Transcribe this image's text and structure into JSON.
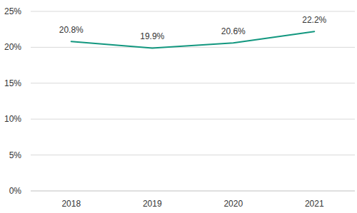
{
  "chart_data": {
    "type": "line",
    "categories": [
      "2018",
      "2019",
      "2020",
      "2021"
    ],
    "values": [
      20.8,
      19.9,
      20.6,
      22.2
    ],
    "value_labels": [
      "20.8%",
      "19.9%",
      "20.6%",
      "22.2%"
    ],
    "color": "#12977f",
    "ylim": [
      0,
      25
    ],
    "yticks": [
      {
        "value": 0,
        "label": "0%"
      },
      {
        "value": 5,
        "label": "5%"
      },
      {
        "value": 10,
        "label": "10%"
      },
      {
        "value": 15,
        "label": "15%"
      },
      {
        "value": 20,
        "label": "20%"
      },
      {
        "value": 25,
        "label": "25%"
      }
    ],
    "grid": true,
    "data_labels": true
  }
}
